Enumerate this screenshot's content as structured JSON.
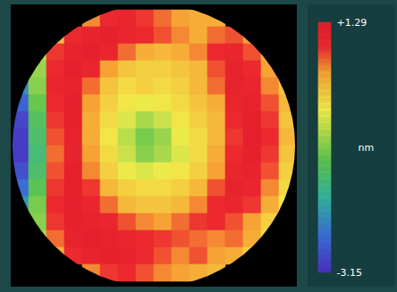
{
  "chart_data": {
    "type": "heatmap",
    "tick_labels": false,
    "colorbar": {
      "range": [
        -3.15,
        1.29
      ],
      "ticks": [
        {
          "value": 1.29,
          "label": "+1.29"
        },
        -3.15
      ],
      "label": "nm"
    },
    "cells": [
      [
        null,
        null,
        null,
        null,
        0.5,
        0.9,
        1.0,
        0.8,
        0.6,
        0.4,
        0.3,
        0.3,
        null,
        null,
        null,
        null
      ],
      [
        null,
        null,
        0.2,
        0.9,
        1.1,
        1.2,
        1.0,
        0.9,
        0.7,
        0.5,
        0.3,
        0.6,
        0.7,
        0.4,
        null,
        null
      ],
      [
        null,
        -0.6,
        0.8,
        1.1,
        1.2,
        1.0,
        0.6,
        0.3,
        0.2,
        0.3,
        0.5,
        0.9,
        1.0,
        0.7,
        0.3,
        null
      ],
      [
        null,
        -0.8,
        0.9,
        1.2,
        1.0,
        0.4,
        0.1,
        0.0,
        0.0,
        0.1,
        0.2,
        0.7,
        1.1,
        0.9,
        0.4,
        null
      ],
      [
        -2.2,
        -0.9,
        1.0,
        1.1,
        0.6,
        0.1,
        -0.1,
        0.0,
        -0.1,
        0.0,
        0.2,
        0.6,
        1.1,
        1.0,
        0.5,
        0.1
      ],
      [
        -2.6,
        -1.1,
        0.9,
        1.2,
        0.4,
        0.0,
        -0.2,
        -0.3,
        -0.2,
        -0.1,
        0.1,
        0.3,
        1.0,
        1.1,
        0.7,
        0.2
      ],
      [
        -2.9,
        -1.3,
        0.8,
        1.2,
        0.3,
        -0.1,
        -0.4,
        -0.7,
        -0.5,
        -0.2,
        0.0,
        0.2,
        0.9,
        1.2,
        0.8,
        0.1
      ],
      [
        -3.0,
        -1.4,
        0.7,
        1.1,
        0.3,
        -0.2,
        -0.6,
        -1.0,
        -0.8,
        -0.3,
        -0.1,
        0.2,
        0.8,
        1.2,
        0.9,
        0.2
      ],
      [
        -3.0,
        -1.5,
        0.6,
        1.1,
        0.4,
        -0.1,
        -0.5,
        -0.9,
        -0.7,
        -0.4,
        -0.1,
        0.3,
        0.9,
        1.2,
        0.8,
        0.1
      ],
      [
        -2.8,
        -1.4,
        0.7,
        1.2,
        0.5,
        0.0,
        -0.3,
        -0.4,
        -0.3,
        -0.2,
        0.0,
        0.4,
        1.0,
        1.1,
        0.7,
        0.0
      ],
      [
        -2.5,
        -1.2,
        0.8,
        1.2,
        0.8,
        0.2,
        0.0,
        -0.1,
        -0.1,
        0.0,
        0.2,
        0.7,
        1.1,
        1.0,
        0.5,
        -0.1
      ],
      [
        -2.1,
        -1.0,
        0.9,
        1.2,
        1.0,
        0.6,
        0.2,
        0.1,
        0.1,
        0.2,
        0.5,
        0.9,
        1.0,
        0.8,
        0.3,
        -0.2
      ],
      [
        null,
        -0.9,
        0.8,
        1.2,
        1.1,
        1.0,
        0.7,
        0.5,
        0.4,
        0.6,
        0.8,
        0.9,
        0.7,
        0.4,
        0.0,
        null
      ],
      [
        null,
        -0.7,
        0.6,
        1.1,
        1.2,
        1.1,
        1.0,
        0.9,
        0.8,
        0.7,
        0.6,
        0.5,
        0.6,
        0.3,
        -0.1,
        null
      ],
      [
        null,
        null,
        0.3,
        0.9,
        1.1,
        1.2,
        1.1,
        0.9,
        0.7,
        0.5,
        0.7,
        0.4,
        0.3,
        0.0,
        null,
        null
      ],
      [
        null,
        null,
        null,
        null,
        0.5,
        0.8,
        0.9,
        0.7,
        0.5,
        0.4,
        0.3,
        0.2,
        null,
        null,
        null,
        null
      ]
    ]
  }
}
